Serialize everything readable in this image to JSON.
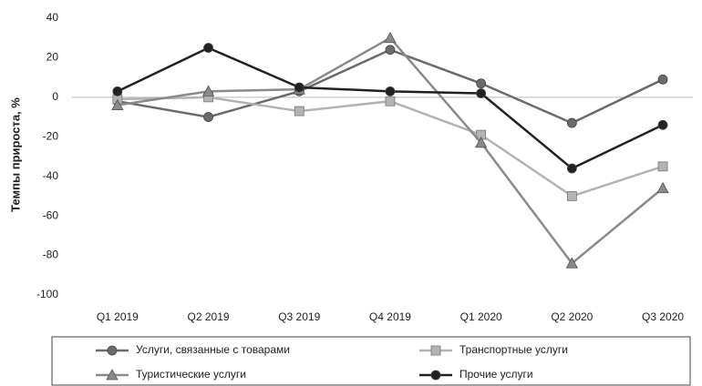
{
  "chart_data": {
    "type": "line",
    "y_label": "Темпы прироста, %",
    "categories": [
      "Q1 2019",
      "Q2 2019",
      "Q3 2019",
      "Q4 2019",
      "Q1 2020",
      "Q2 2020",
      "Q3 2020"
    ],
    "series": [
      {
        "name": "Услуги, связанные с товарами",
        "color": "#6b6b6b",
        "marker": "circle",
        "values": [
          -2,
          -10,
          3,
          24,
          7,
          -13,
          9
        ]
      },
      {
        "name": "Транспортные услуги",
        "color": "#b3b3b3",
        "marker": "square",
        "values": [
          -1,
          0,
          -7,
          -2,
          -19,
          -50,
          -35
        ]
      },
      {
        "name": "Туристические услуги",
        "color": "#8a8a8a",
        "marker": "triangle",
        "values": [
          -4,
          3,
          4,
          30,
          -23,
          -84,
          -46
        ]
      },
      {
        "name": "Прочие услуги",
        "color": "#222222",
        "marker": "circle",
        "values": [
          3,
          25,
          5,
          3,
          2,
          -36,
          -14
        ]
      }
    ],
    "ylim": [
      -100,
      40
    ],
    "yticks": [
      -100,
      -80,
      -60,
      -40,
      -20,
      0,
      20,
      40
    ],
    "grid": false,
    "legend": "bottom"
  }
}
